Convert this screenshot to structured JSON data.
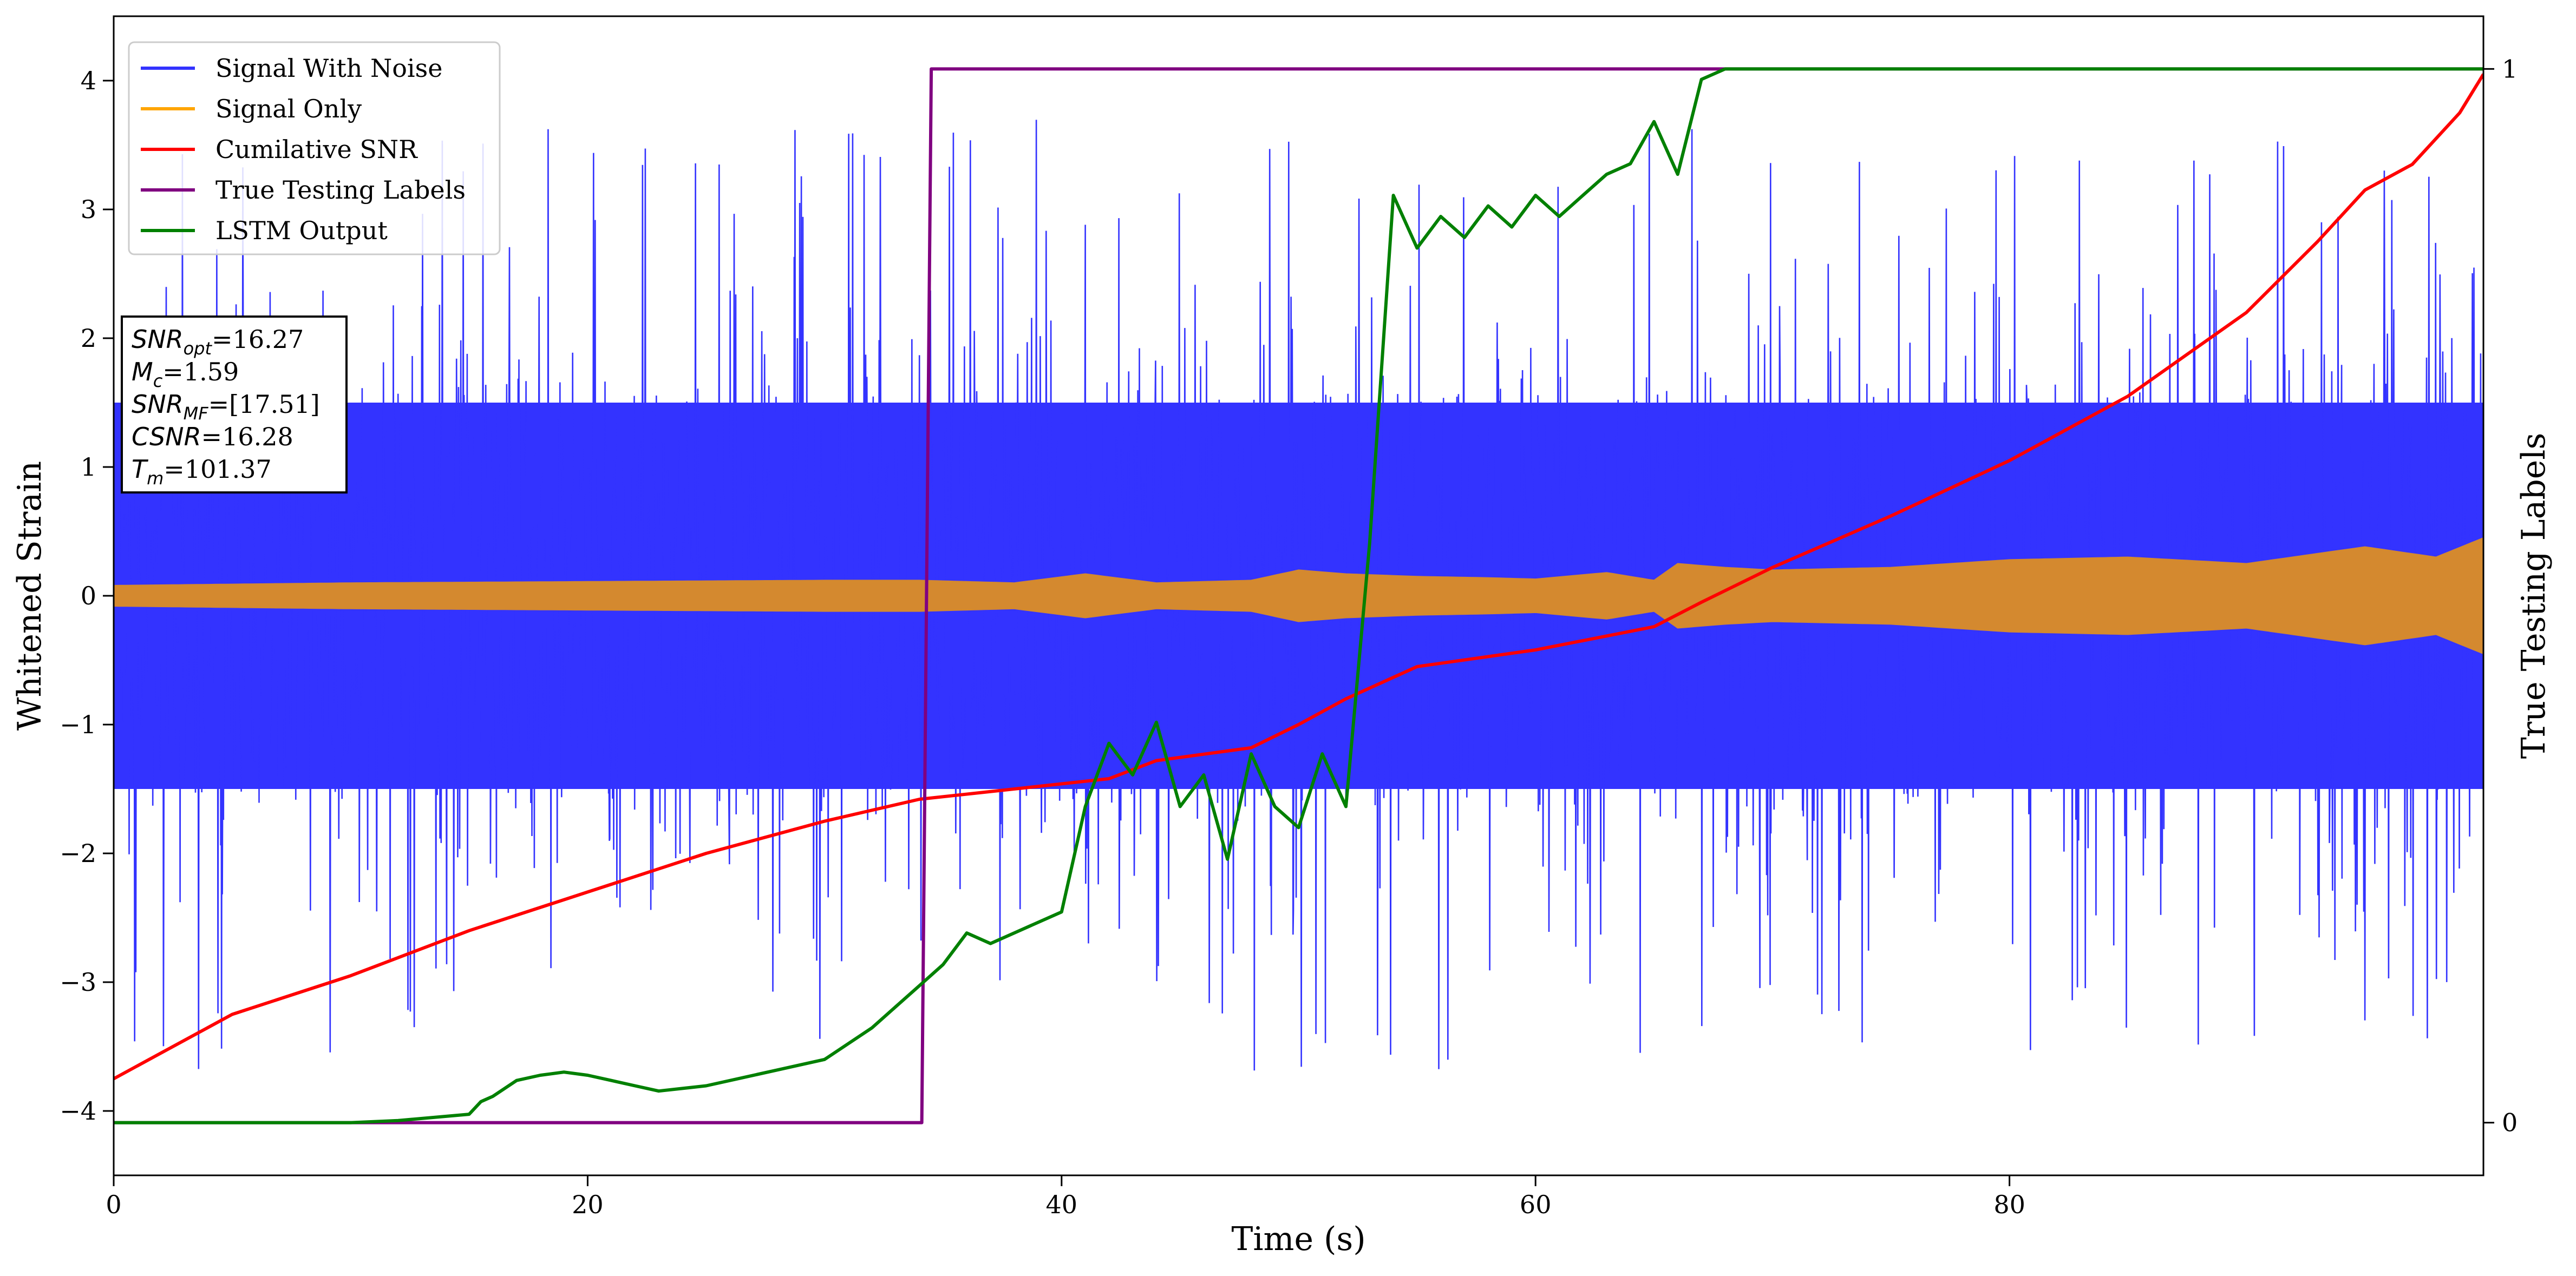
{
  "chart_data": {
    "type": "line",
    "xlabel": "Time (s)",
    "ylabel": "Whitened Strain",
    "y2label": "True Testing Labels",
    "xlim": [
      0,
      100
    ],
    "ylim": [
      -4.5,
      4.5
    ],
    "y2lim": [
      -0.05,
      1.05
    ],
    "xticks": [
      0,
      20,
      40,
      60,
      80
    ],
    "xtick_labels": [
      "0",
      "20",
      "40",
      "60",
      "80"
    ],
    "yticks": [
      -4,
      -3,
      -2,
      -1,
      0,
      1,
      2,
      3,
      4
    ],
    "ytick_labels": [
      "−4",
      "−3",
      "−2",
      "−1",
      "0",
      "1",
      "2",
      "3",
      "4"
    ],
    "y2ticks": [
      0,
      1
    ],
    "y2tick_labels": [
      "0",
      "1"
    ],
    "legend_position": "top-left",
    "grid": false,
    "annotation": [
      {
        "var": "SNR",
        "sub": "opt",
        "value": "=16.27"
      },
      {
        "var": "M",
        "sub": "c",
        "value": "=1.59"
      },
      {
        "var": "SNR",
        "sub": "MF",
        "value": "=[17.51]"
      },
      {
        "var": "CSNR",
        "sub": "",
        "value": "=16.28"
      },
      {
        "var": "T",
        "sub": "m",
        "value": "=101.37"
      }
    ],
    "series": [
      {
        "name": "Signal With Noise",
        "axis": "left",
        "color": "#3333ff",
        "kind": "noise",
        "band_y": [
          -1.5,
          1.5
        ],
        "peak_y": [
          -4.1,
          3.9
        ]
      },
      {
        "name": "Signal Only",
        "axis": "left",
        "color": "#ffa500",
        "fill_color": "#d4892f",
        "kind": "oscillation",
        "x": [
          0,
          10,
          20,
          30,
          34,
          38,
          41,
          44,
          48,
          50,
          52,
          55,
          58,
          60,
          63,
          65,
          66,
          68,
          70,
          75,
          80,
          85,
          90,
          95,
          98,
          100
        ],
        "amplitude": [
          0.08,
          0.1,
          0.11,
          0.12,
          0.12,
          0.1,
          0.17,
          0.1,
          0.12,
          0.2,
          0.17,
          0.15,
          0.14,
          0.13,
          0.18,
          0.12,
          0.25,
          0.22,
          0.2,
          0.22,
          0.28,
          0.3,
          0.25,
          0.38,
          0.3,
          0.45
        ]
      },
      {
        "name": "Cumilative SNR",
        "axis": "left",
        "color": "#ff0000",
        "x": [
          0,
          2,
          5,
          10,
          15,
          20,
          25,
          30,
          34,
          38,
          42,
          44,
          48,
          50,
          52,
          55,
          60,
          65,
          67,
          70,
          75,
          80,
          85,
          90,
          93,
          95,
          97,
          99,
          100
        ],
        "y": [
          -3.75,
          -3.55,
          -3.25,
          -2.95,
          -2.6,
          -2.3,
          -2.0,
          -1.75,
          -1.58,
          -1.5,
          -1.42,
          -1.28,
          -1.18,
          -1.0,
          -0.8,
          -0.55,
          -0.42,
          -0.24,
          -0.05,
          0.22,
          0.62,
          1.05,
          1.55,
          2.2,
          2.75,
          3.15,
          3.35,
          3.75,
          4.05
        ]
      },
      {
        "name": "True Testing Labels",
        "axis": "right",
        "color": "#800080",
        "x": [
          0,
          34.1,
          34.5,
          100
        ],
        "y": [
          0,
          0,
          1,
          1
        ]
      },
      {
        "name": "LSTM Output",
        "axis": "right",
        "color": "#008000",
        "x": [
          0,
          10,
          12,
          15,
          15.5,
          16,
          17,
          18,
          19,
          20,
          21,
          22,
          23,
          25,
          28,
          30,
          32,
          33,
          34,
          35,
          36,
          37,
          38,
          40,
          41,
          42,
          43,
          44,
          45,
          46,
          47,
          48,
          49,
          50,
          51,
          52,
          53,
          54,
          55,
          56,
          57,
          58,
          59,
          60,
          61,
          62,
          63,
          64,
          65,
          66,
          67,
          68,
          70,
          72,
          100
        ],
        "y": [
          0,
          0,
          0.002,
          0.008,
          0.02,
          0.025,
          0.04,
          0.045,
          0.048,
          0.045,
          0.04,
          0.035,
          0.03,
          0.035,
          0.05,
          0.06,
          0.09,
          0.11,
          0.13,
          0.15,
          0.18,
          0.17,
          0.18,
          0.2,
          0.3,
          0.36,
          0.33,
          0.38,
          0.3,
          0.33,
          0.25,
          0.35,
          0.3,
          0.28,
          0.35,
          0.3,
          0.55,
          0.88,
          0.83,
          0.86,
          0.84,
          0.87,
          0.85,
          0.88,
          0.86,
          0.88,
          0.9,
          0.91,
          0.95,
          0.9,
          0.99,
          1.0,
          1.0,
          1.0,
          1.0
        ]
      }
    ]
  }
}
